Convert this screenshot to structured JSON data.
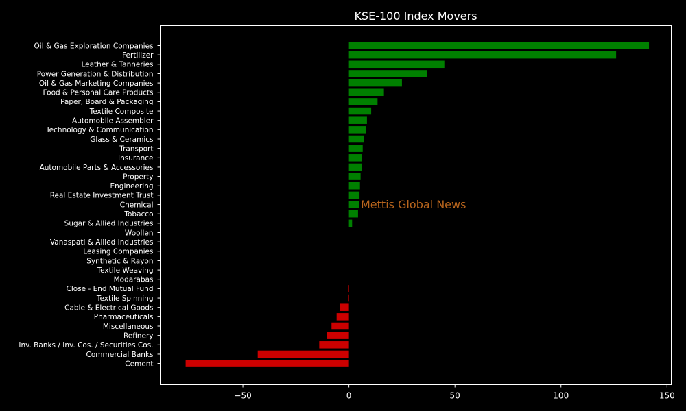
{
  "chart_data": {
    "type": "bar",
    "orientation": "horizontal",
    "title": "KSE-100 Index Movers",
    "xlabel": "",
    "ylabel": "",
    "xlim": [
      -89,
      152
    ],
    "xticks": [
      -50,
      0,
      50,
      100,
      150
    ],
    "xtick_labels": [
      "−50",
      "0",
      "50",
      "100",
      "150"
    ],
    "grid": false,
    "colors": {
      "positive": "#008000",
      "negative": "#cc0000",
      "background": "#000000",
      "text": "#ffffff",
      "axes": "#ffffff"
    },
    "categories": [
      "Oil & Gas Exploration Companies",
      "Fertilizer",
      "Leather & Tanneries",
      "Power Generation & Distribution",
      "Oil & Gas Marketing Companies",
      "Food & Personal Care Products",
      "Paper, Board & Packaging",
      "Textile Composite",
      "Automobile Assembler",
      "Technology & Communication",
      "Glass & Ceramics",
      "Transport",
      "Insurance",
      "Automobile Parts & Accessories",
      "Property",
      "Engineering",
      "Real Estate Investment Trust",
      "Chemical",
      "Tobacco",
      "Sugar & Allied Industries",
      "Woollen",
      "Vanaspati & Allied Industries",
      "Leasing Companies",
      "Synthetic & Rayon",
      "Textile Weaving",
      "Modarabas",
      "Close - End Mutual Fund",
      "Textile Spinning",
      "Cable & Electrical Goods",
      "Pharmaceuticals",
      "Miscellaneous",
      "Refinery",
      "Inv. Banks / Inv. Cos. / Securities Cos.",
      "Commercial Banks",
      "Cement"
    ],
    "values": [
      141.5,
      126,
      45,
      37,
      25,
      16.5,
      13.5,
      10.5,
      8.5,
      8,
      7,
      6.5,
      6.2,
      6,
      5.5,
      5.2,
      5,
      4.7,
      4.3,
      1.5,
      0,
      0,
      0,
      0,
      0,
      0,
      -0.3,
      -0.5,
      -4.3,
      -5.8,
      -8.2,
      -10.5,
      -14,
      -43,
      -77
    ],
    "watermark": "Mettis Global News"
  }
}
